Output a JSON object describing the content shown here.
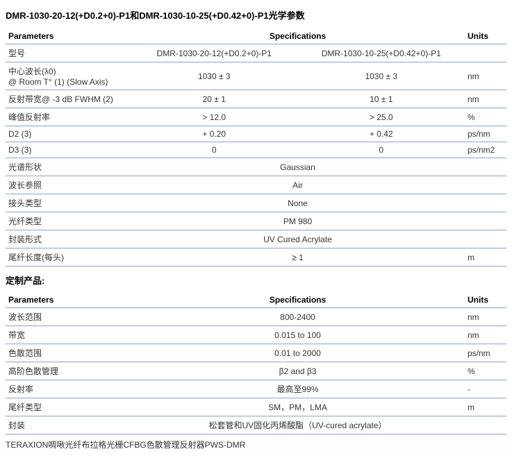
{
  "title": "DMR-1030-20-12(+D0.2+0)-P1和DMR-1030-10-25(+D0.42+0)-P1光学参数",
  "table1": {
    "headers": {
      "param": "Parameters",
      "spec": "Specifications",
      "units": "Units"
    },
    "model_label": "型号",
    "model_a": "DMR-1030-20-12(+D0.2+0)-P1",
    "model_b": "DMR-1030-10-25(+D0.42+0)-P1",
    "rows2": [
      {
        "param": "中心波长(λ0)\n@ Room T° (1) (Slow Axis)",
        "a": "1030 ± 3",
        "b": "1030 ± 3",
        "units": "nm"
      },
      {
        "param": "反射带宽@ -3 dB FWHM (2)",
        "a": "20 ± 1",
        "b": "10 ± 1",
        "units": "nm"
      },
      {
        "param": "峰值反射率",
        "a": "> 12.0",
        "b": "> 25.0",
        "units": "%"
      },
      {
        "param": "D2 (3)",
        "a": "+ 0.20",
        "b": "+ 0.42",
        "units": "ps/nm"
      },
      {
        "param": "D3 (3)",
        "a": "0",
        "b": "0",
        "units": "ps/nm2"
      }
    ],
    "rows1": [
      {
        "param": "光谱形状",
        "val": "Gaussian",
        "units": ""
      },
      {
        "param": "波长参照",
        "val": "Air",
        "units": ""
      },
      {
        "param": "接头类型",
        "val": "None",
        "units": ""
      },
      {
        "param": "光纤类型",
        "val": "PM 980",
        "units": ""
      },
      {
        "param": "封装形式",
        "val": "UV Cured Acrylate",
        "units": ""
      },
      {
        "param": "尾纤长度(每头)",
        "val": "≥ 1",
        "units": "m"
      }
    ]
  },
  "custom_title": "定制产品:",
  "table2": {
    "headers": {
      "param": "Parameters",
      "spec": "Specifications",
      "units": "Units"
    },
    "rows": [
      {
        "param": "波长范围",
        "val": "800-2400",
        "units": "nm"
      },
      {
        "param": "带宽",
        "val": "0.015 to 100",
        "units": "nm"
      },
      {
        "param": "色散范围",
        "val": "0.01 to 2000",
        "units": "ps/nm"
      },
      {
        "param": "高阶色散管理",
        "val": "β2 and β3",
        "units": "%"
      },
      {
        "param": "反射率",
        "val": "最高至99%",
        "units": "-"
      },
      {
        "param": "尾纤类型",
        "val": "SM，PM，LMA",
        "units": "m"
      },
      {
        "param": "封装",
        "val": "松套管和UV固化丙烯酸酯（UV-cured acrylate）",
        "units": ""
      }
    ]
  },
  "footer": "TERAXION啁啾光纤布拉格光栅CFBG色散管理反射器PWS-DMR"
}
